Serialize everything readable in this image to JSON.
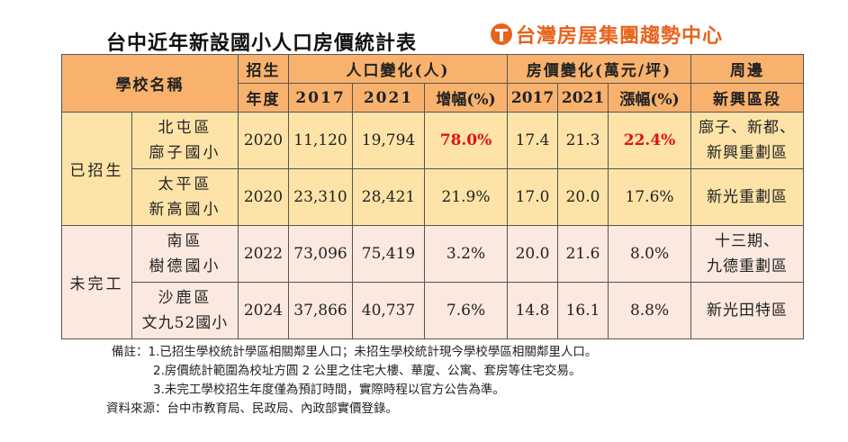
{
  "header": {
    "title": "台中近年新設國小人口房價統計表",
    "brand": "台灣房屋集團趨勢中心",
    "brand_color": "#e8631e",
    "brand_icon": "taiwan-house-logo-icon"
  },
  "table": {
    "headers": {
      "school": "學校名稱",
      "enroll_1": "招生",
      "enroll_2": "年度",
      "population": "人口變化(人)",
      "price": "房價變化(萬元/坪)",
      "area_1": "周邊",
      "area_2": "新興區段",
      "year_a": "2017",
      "year_b": "2021",
      "pop_growth": "增幅(%)",
      "price_year_a": "2017",
      "price_year_b": "2021",
      "price_growth": "漲幅(%)"
    },
    "groups": {
      "enrolled": "已招生",
      "unfinished": "未完工"
    },
    "rows": [
      {
        "district": "北屯區",
        "school": "廍子國小",
        "year": "2020",
        "pop2017": "11,120",
        "pop2021": "19,794",
        "pop_growth": "78.0%",
        "price2017": "17.4",
        "price2021": "21.3",
        "price_growth": "22.4%",
        "area_1": "廍子、新都、",
        "area_2": "新興重劃區"
      },
      {
        "district": "太平區",
        "school": "新高國小",
        "year": "2020",
        "pop2017": "23,310",
        "pop2021": "28,421",
        "pop_growth": "21.9%",
        "price2017": "17.0",
        "price2021": "20.0",
        "price_growth": "17.6%",
        "area_1": "新光重劃區",
        "area_2": ""
      },
      {
        "district": "南區",
        "school": "樹德國小",
        "year": "2022",
        "pop2017": "73,096",
        "pop2021": "75,419",
        "pop_growth": "3.2%",
        "price2017": "20.0",
        "price2021": "21.6",
        "price_growth": "8.0%",
        "area_1": "十三期、",
        "area_2": "九德重劃區"
      },
      {
        "district": "沙鹿區",
        "school": "文九52國小",
        "year": "2024",
        "pop2017": "37,866",
        "pop2021": "40,737",
        "pop_growth": "7.6%",
        "price2017": "14.8",
        "price2021": "16.1",
        "price_growth": "8.8%",
        "area_1": "新光田特區",
        "area_2": ""
      }
    ],
    "highlight_color": "#e0101a",
    "header_color": "#f8b26d",
    "enrolled_color": "#fde3a7",
    "unfinished_color": "#fbe8df"
  },
  "notes": {
    "note1": "備註：1.已招生學校統計學區相關鄰里人口；未招生學校統計現今學校學區相關鄰里人口。",
    "note2": "2.房價統計範圍為校址方圓 2 公里之住宅大樓、華廈、公寓、套房等住宅交易。",
    "note3": "3.未完工學校招生年度僅為預訂時間，實際時程以官方公告為準。",
    "source": "資料來源：台中市教育局、民政局、內政部實價登錄。"
  }
}
